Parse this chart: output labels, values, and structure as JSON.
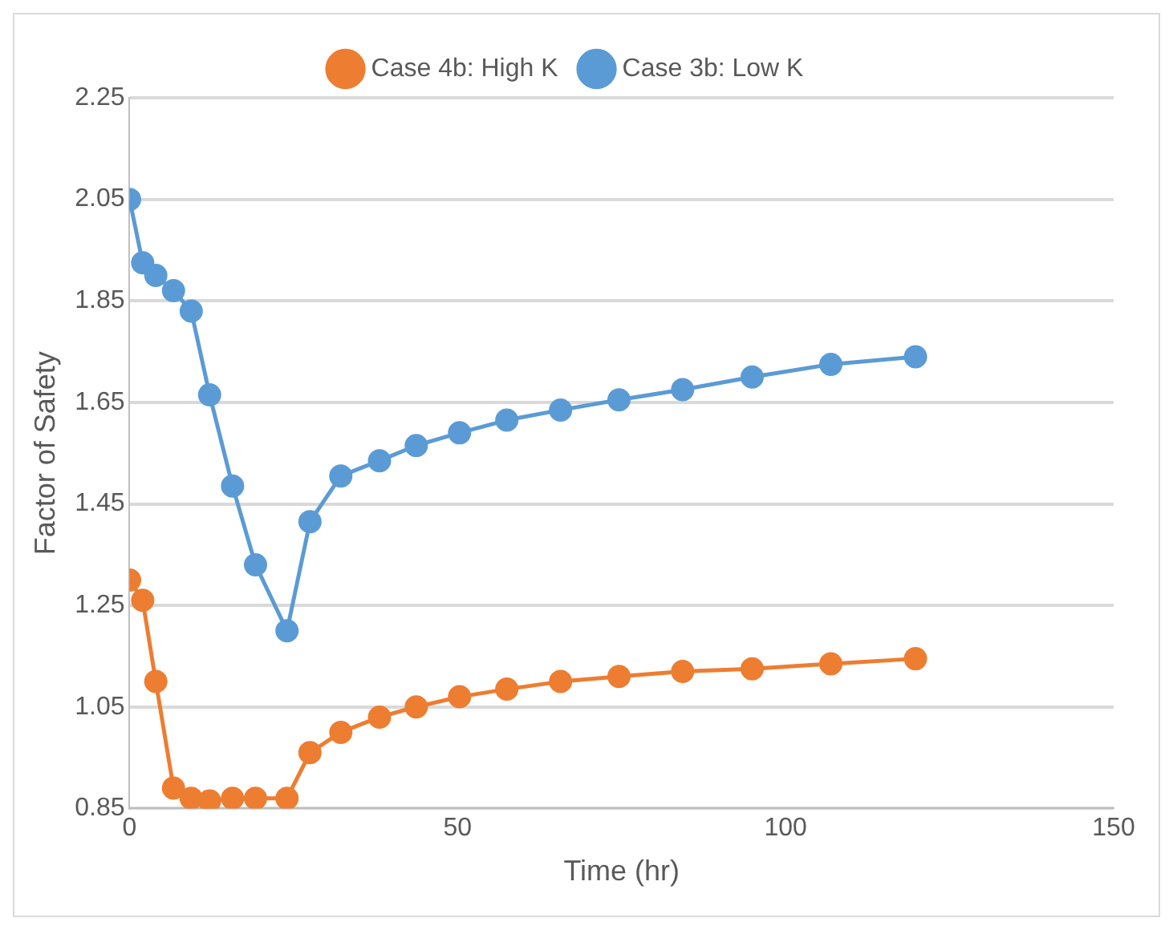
{
  "chart_data": {
    "type": "line",
    "xlabel": "Time (hr)",
    "ylabel": "Factor of Safety",
    "x": [
      0,
      2,
      4,
      6.7,
      9.4,
      12.2,
      15.7,
      19.2,
      24,
      27.5,
      32.2,
      38.1,
      43.7,
      50.3,
      57.5,
      65.7,
      74.6,
      84.3,
      94.9,
      106.9,
      119.8
    ],
    "series": [
      {
        "name": "Case 4b: High K",
        "color": "#ed7d31",
        "values": [
          1.3,
          1.26,
          1.1,
          0.89,
          0.87,
          0.865,
          0.87,
          0.87,
          0.87,
          0.96,
          1.0,
          1.03,
          1.05,
          1.07,
          1.085,
          1.1,
          1.11,
          1.12,
          1.125,
          1.135,
          1.145
        ]
      },
      {
        "name": "Case 3b: Low K",
        "color": "#5b9bd5",
        "values": [
          2.05,
          1.925,
          1.9,
          1.87,
          1.83,
          1.665,
          1.485,
          1.33,
          1.2,
          1.415,
          1.505,
          1.535,
          1.565,
          1.59,
          1.615,
          1.635,
          1.655,
          1.675,
          1.7,
          1.725,
          1.74
        ]
      }
    ],
    "xlim": [
      0,
      150
    ],
    "xticks": [
      0,
      50,
      100,
      150
    ],
    "ylim": [
      0.85,
      2.25
    ],
    "yticks": [
      0.85,
      1.05,
      1.25,
      1.45,
      1.65,
      1.85,
      2.05,
      2.25
    ],
    "grid": "y",
    "legend": "top",
    "marker": "circle",
    "line_style": "solid"
  }
}
